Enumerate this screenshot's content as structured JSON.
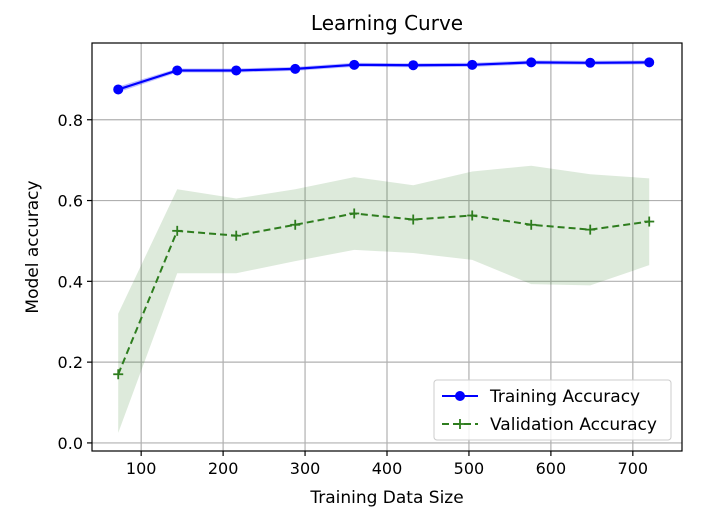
{
  "chart_data": {
    "type": "line",
    "title": "Learning Curve",
    "xlabel": "Training Data Size",
    "ylabel": "Model accuracy",
    "xlim": [
      40,
      760
    ],
    "ylim": [
      -0.02,
      0.99
    ],
    "xticks": [
      100,
      200,
      300,
      400,
      500,
      600,
      700
    ],
    "yticks": [
      0.0,
      0.2,
      0.4,
      0.6,
      0.8
    ],
    "grid": true,
    "legend_position": "lower-right",
    "x": [
      72,
      144,
      216,
      288,
      360,
      432,
      504,
      576,
      648,
      720
    ],
    "series": [
      {
        "name": "Training Accuracy",
        "color": "#0000ff",
        "style": "solid",
        "marker": "circle",
        "values": [
          0.875,
          0.922,
          0.922,
          0.926,
          0.936,
          0.935,
          0.936,
          0.942,
          0.941,
          0.942
        ],
        "band_lower": [
          0.868,
          0.917,
          0.917,
          0.921,
          0.931,
          0.93,
          0.931,
          0.937,
          0.936,
          0.937
        ],
        "band_upper": [
          0.882,
          0.927,
          0.927,
          0.931,
          0.941,
          0.94,
          0.941,
          0.947,
          0.946,
          0.947
        ]
      },
      {
        "name": "Validation Accuracy",
        "color": "#2e7d1e",
        "style": "dashed",
        "marker": "plus",
        "values": [
          0.17,
          0.525,
          0.513,
          0.54,
          0.568,
          0.553,
          0.563,
          0.54,
          0.528,
          0.548
        ],
        "band_lower": [
          0.025,
          0.42,
          0.42,
          0.45,
          0.478,
          0.47,
          0.453,
          0.393,
          0.39,
          0.44
        ],
        "band_upper": [
          0.32,
          0.628,
          0.605,
          0.628,
          0.658,
          0.638,
          0.672,
          0.686,
          0.665,
          0.655
        ]
      }
    ]
  }
}
